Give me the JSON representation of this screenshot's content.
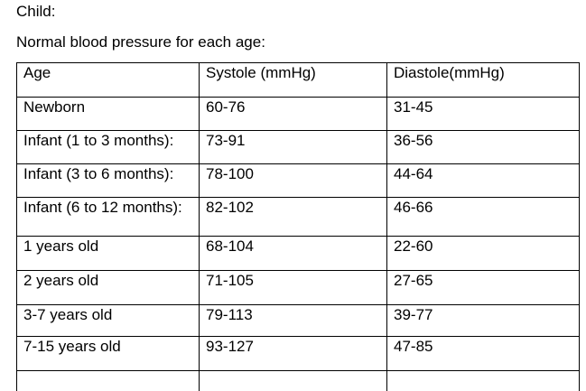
{
  "document": {
    "heading": "Child:",
    "subheading": "Normal blood pressure for each age:"
  },
  "table": {
    "headers": [
      "Age",
      "Systole (mmHg)",
      "Diastole(mmHg)"
    ],
    "rows": [
      [
        "Newborn",
        "60-76",
        "31-45"
      ],
      [
        "Infant (1 to 3 months):",
        "73-91",
        "36-56"
      ],
      [
        "Infant (3 to 6 months):",
        "78-100",
        "44-64"
      ],
      [
        "Infant (6 to 12 months):",
        "82-102",
        "46-66"
      ],
      [
        "1 years old",
        "68-104",
        "22-60"
      ],
      [
        "2 years old",
        "71-105",
        "27-65"
      ],
      [
        "3-7 years old",
        "79-113",
        "39-77"
      ],
      [
        "7-15 years old",
        "93-127",
        "47-85"
      ]
    ]
  }
}
